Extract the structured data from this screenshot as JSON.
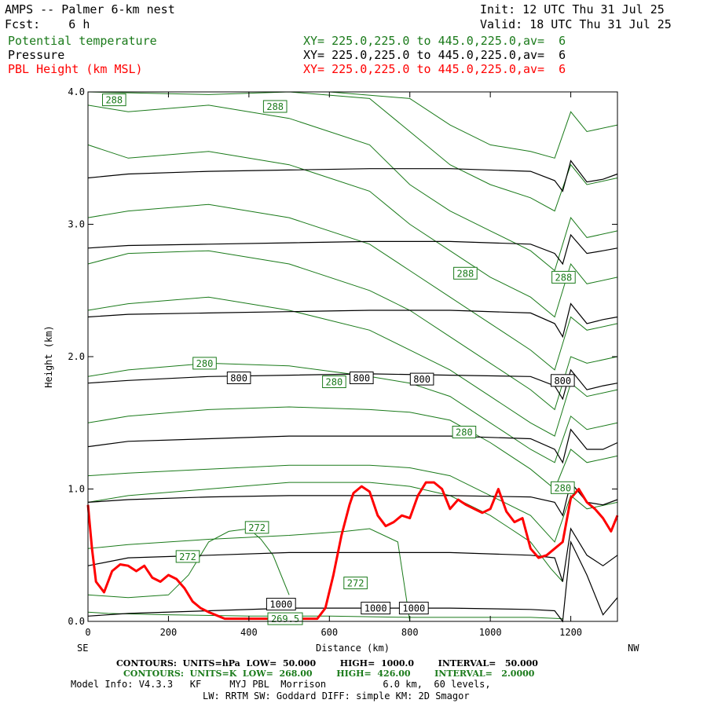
{
  "header": {
    "title": "AMPS -- Palmer 6-km nest",
    "forecast": "Fcst:    6 h",
    "init": "Init: 12 UTC Thu 31 Jul 25",
    "valid": "Valid: 18 UTC Thu 31 Jul 25"
  },
  "fields": [
    {
      "name": "Potential temperature",
      "xy": "XY= 225.0,225.0 to 445.0,225.0,av=  6"
    },
    {
      "name": "Pressure",
      "xy": "XY= 225.0,225.0 to 445.0,225.0,av=  6"
    },
    {
      "name": "PBL Height (km MSL)",
      "xy": "XY= 225.0,225.0 to 445.0,225.0,av=  6"
    }
  ],
  "colors": {
    "theta": "#1a7a1a",
    "pressure": "#000000",
    "pbl": "#ff0000"
  },
  "footer": {
    "line1": "CONTOURS:  UNITS=hPa  LOW=  50.000        HIGH=  1000.0        INTERVAL=   50.000",
    "line2": "CONTOURS:  UNITS=K  LOW=  268.00        HIGH=  426.00        INTERVAL=   2.0000",
    "line3": "Model Info: V4.3.3   KF     MYJ PBL  Morrison          6.0 km,  60 levels,",
    "line4": "LW: RRTM SW: Goddard DIFF: simple KM: 2D Smagor"
  },
  "chart_data": {
    "type": "line",
    "xlabel": "Distance (km)",
    "ylabel": "Height (km)",
    "x_end_left": "SE",
    "x_end_right": "NW",
    "xlim": [
      0,
      1316
    ],
    "ylim": [
      0,
      4
    ],
    "x_ticks": [
      0,
      200,
      400,
      600,
      800,
      1000,
      1200
    ],
    "y_ticks": [
      0.0,
      1.0,
      2.0,
      3.0,
      4.0
    ],
    "x_tick_labels": [
      "0",
      "200",
      "400",
      "600",
      "800",
      "1000",
      "1200"
    ],
    "y_tick_labels": [
      "0.0",
      "1.0",
      "2.0",
      "3.0",
      "4.0"
    ],
    "series": [
      {
        "name": "PBL Height (km MSL)",
        "color": "#ff0000",
        "x": [
          0,
          10,
          20,
          40,
          60,
          80,
          100,
          120,
          140,
          160,
          180,
          200,
          220,
          240,
          260,
          280,
          300,
          340,
          400,
          460,
          500,
          540,
          570,
          590,
          610,
          630,
          650,
          660,
          680,
          700,
          720,
          740,
          760,
          780,
          800,
          820,
          840,
          860,
          880,
          900,
          920,
          940,
          960,
          980,
          1000,
          1020,
          1040,
          1060,
          1080,
          1100,
          1120,
          1140,
          1160,
          1180,
          1200,
          1220,
          1240,
          1260,
          1280,
          1300,
          1316
        ],
        "y": [
          0.88,
          0.55,
          0.3,
          0.22,
          0.38,
          0.43,
          0.42,
          0.38,
          0.42,
          0.33,
          0.3,
          0.35,
          0.32,
          0.25,
          0.15,
          0.1,
          0.07,
          0.02,
          0.02,
          0.02,
          0.02,
          0.02,
          0.02,
          0.1,
          0.35,
          0.65,
          0.88,
          0.97,
          1.02,
          0.98,
          0.8,
          0.72,
          0.75,
          0.8,
          0.78,
          0.95,
          1.05,
          1.05,
          1.0,
          0.85,
          0.92,
          0.88,
          0.85,
          0.82,
          0.85,
          1.0,
          0.83,
          0.75,
          0.78,
          0.55,
          0.48,
          0.5,
          0.55,
          0.6,
          0.93,
          1.0,
          0.9,
          0.85,
          0.78,
          0.68,
          0.8
        ]
      }
    ],
    "pressure_contours_hPa": [
      {
        "level": 1000,
        "label": "1000",
        "x": [
          0,
          100,
          300,
          500,
          700,
          900,
          1100,
          1160,
          1180,
          1200,
          1240,
          1280,
          1316
        ],
        "y": [
          0.04,
          0.06,
          0.08,
          0.1,
          0.1,
          0.1,
          0.09,
          0.08,
          0.0,
          0.6,
          0.35,
          0.05,
          0.18
        ]
      },
      {
        "level": 950,
        "x": [
          0,
          100,
          300,
          500,
          700,
          900,
          1100,
          1160,
          1180,
          1200,
          1240,
          1280,
          1316
        ],
        "y": [
          0.42,
          0.48,
          0.5,
          0.52,
          0.52,
          0.52,
          0.5,
          0.48,
          0.3,
          0.7,
          0.5,
          0.42,
          0.5
        ]
      },
      {
        "level": 900,
        "x": [
          0,
          100,
          300,
          500,
          700,
          900,
          1100,
          1160,
          1180,
          1200,
          1240,
          1280,
          1316
        ],
        "y": [
          0.9,
          0.92,
          0.94,
          0.95,
          0.95,
          0.95,
          0.94,
          0.9,
          0.8,
          1.05,
          0.9,
          0.88,
          0.92
        ]
      },
      {
        "level": 850,
        "x": [
          0,
          100,
          300,
          500,
          700,
          900,
          1100,
          1160,
          1180,
          1200,
          1240,
          1280,
          1316
        ],
        "y": [
          1.32,
          1.36,
          1.38,
          1.4,
          1.4,
          1.4,
          1.38,
          1.3,
          1.2,
          1.45,
          1.3,
          1.3,
          1.35
        ]
      },
      {
        "level": 800,
        "label": "800",
        "x": [
          0,
          100,
          300,
          500,
          700,
          900,
          1100,
          1160,
          1180,
          1200,
          1240,
          1280,
          1316
        ],
        "y": [
          1.8,
          1.82,
          1.85,
          1.86,
          1.87,
          1.86,
          1.85,
          1.78,
          1.68,
          1.9,
          1.75,
          1.78,
          1.8
        ]
      },
      {
        "level": 750,
        "x": [
          0,
          100,
          300,
          500,
          700,
          900,
          1100,
          1160,
          1180,
          1200,
          1240,
          1280,
          1316
        ],
        "y": [
          2.3,
          2.32,
          2.33,
          2.34,
          2.35,
          2.35,
          2.33,
          2.25,
          2.15,
          2.4,
          2.25,
          2.28,
          2.3
        ]
      },
      {
        "level": 700,
        "x": [
          0,
          100,
          300,
          500,
          700,
          900,
          1100,
          1160,
          1180,
          1200,
          1240,
          1280,
          1316
        ],
        "y": [
          2.82,
          2.84,
          2.85,
          2.86,
          2.87,
          2.87,
          2.85,
          2.78,
          2.7,
          2.92,
          2.78,
          2.8,
          2.82
        ]
      },
      {
        "level": 650,
        "x": [
          0,
          100,
          300,
          500,
          700,
          900,
          1100,
          1160,
          1180,
          1200,
          1240,
          1280,
          1316
        ],
        "y": [
          3.35,
          3.38,
          3.4,
          3.41,
          3.42,
          3.42,
          3.4,
          3.33,
          3.25,
          3.48,
          3.32,
          3.34,
          3.38
        ]
      }
    ],
    "theta_contours_K": [
      {
        "x": [
          0,
          50,
          200,
          400,
          600,
          800,
          1000,
          1100,
          1180
        ],
        "y": [
          0.07,
          0.06,
          0.05,
          0.04,
          0.04,
          0.03,
          0.03,
          0.03,
          0.02
        ]
      },
      {
        "x": [
          0,
          100,
          200,
          250,
          300,
          350,
          400,
          430,
          460,
          480,
          500
        ],
        "y": [
          0.2,
          0.18,
          0.2,
          0.35,
          0.6,
          0.68,
          0.7,
          0.62,
          0.5,
          0.35,
          0.2
        ]
      },
      {
        "x": [
          0,
          100,
          300,
          500,
          640,
          700,
          770,
          800
        ],
        "y": [
          0.55,
          0.58,
          0.62,
          0.65,
          0.68,
          0.7,
          0.6,
          0.0
        ]
      },
      {
        "x": [
          0,
          100,
          300,
          500,
          700,
          800,
          900,
          1000,
          1050,
          1100,
          1150,
          1180
        ],
        "y": [
          0.9,
          0.95,
          1.0,
          1.05,
          1.05,
          1.02,
          0.95,
          0.8,
          0.7,
          0.6,
          0.4,
          0.3
        ]
      },
      {
        "x": [
          0,
          100,
          300,
          500,
          700,
          800,
          900,
          1000,
          1100,
          1160,
          1200,
          1240,
          1316
        ],
        "y": [
          1.1,
          1.12,
          1.15,
          1.18,
          1.18,
          1.16,
          1.1,
          0.95,
          0.8,
          0.6,
          0.95,
          0.85,
          0.9
        ]
      },
      {
        "x": [
          0,
          100,
          300,
          500,
          700,
          800,
          900,
          1000,
          1100,
          1160,
          1200,
          1240,
          1316
        ],
        "y": [
          1.5,
          1.55,
          1.6,
          1.62,
          1.6,
          1.58,
          1.52,
          1.35,
          1.15,
          1.0,
          1.3,
          1.2,
          1.25
        ]
      },
      {
        "x": [
          0,
          100,
          300,
          500,
          700,
          800,
          900,
          1000,
          1100,
          1160,
          1200,
          1240,
          1316
        ],
        "y": [
          1.85,
          1.9,
          1.95,
          1.93,
          1.85,
          1.8,
          1.7,
          1.5,
          1.3,
          1.2,
          1.55,
          1.45,
          1.5
        ]
      },
      {
        "x": [
          0,
          100,
          300,
          500,
          700,
          800,
          900,
          1000,
          1100,
          1160,
          1200,
          1240,
          1316
        ],
        "y": [
          2.35,
          2.4,
          2.45,
          2.35,
          2.2,
          2.05,
          1.9,
          1.7,
          1.5,
          1.4,
          1.8,
          1.7,
          1.75
        ]
      },
      {
        "x": [
          0,
          100,
          300,
          500,
          700,
          800,
          900,
          1000,
          1100,
          1160,
          1200,
          1240,
          1316
        ],
        "y": [
          2.7,
          2.78,
          2.8,
          2.7,
          2.5,
          2.35,
          2.15,
          1.95,
          1.75,
          1.6,
          2.0,
          1.95,
          2.0
        ]
      },
      {
        "x": [
          0,
          100,
          300,
          500,
          700,
          800,
          900,
          1000,
          1100,
          1160,
          1200,
          1240,
          1316
        ],
        "y": [
          3.05,
          3.1,
          3.15,
          3.05,
          2.85,
          2.65,
          2.45,
          2.25,
          2.05,
          1.9,
          2.3,
          2.2,
          2.25
        ]
      },
      {
        "x": [
          0,
          100,
          300,
          500,
          700,
          800,
          900,
          1000,
          1100,
          1160,
          1200,
          1240,
          1316
        ],
        "y": [
          3.6,
          3.5,
          3.55,
          3.45,
          3.25,
          3.0,
          2.8,
          2.6,
          2.45,
          2.3,
          2.7,
          2.55,
          2.6
        ]
      },
      {
        "x": [
          0,
          100,
          300,
          500,
          700,
          800,
          900,
          1000,
          1100,
          1160,
          1200,
          1240,
          1316
        ],
        "y": [
          3.9,
          3.85,
          3.9,
          3.8,
          3.6,
          3.3,
          3.1,
          2.95,
          2.8,
          2.65,
          3.05,
          2.9,
          2.95
        ]
      },
      {
        "x": [
          0,
          300,
          500,
          700,
          800,
          900,
          1000,
          1100,
          1160,
          1200,
          1240,
          1316
        ],
        "y": [
          4.0,
          3.98,
          4.0,
          3.95,
          3.7,
          3.45,
          3.3,
          3.2,
          3.1,
          3.45,
          3.3,
          3.35
        ]
      },
      {
        "x": [
          600,
          800,
          900,
          1000,
          1100,
          1160,
          1200,
          1240,
          1316
        ],
        "y": [
          4.0,
          3.95,
          3.75,
          3.6,
          3.55,
          3.5,
          3.85,
          3.7,
          3.75
        ]
      }
    ],
    "contour_labels": [
      {
        "text": "288",
        "units": "K",
        "x": 65,
        "y": 3.94
      },
      {
        "text": "288",
        "units": "K",
        "x": 465,
        "y": 3.89
      },
      {
        "text": "288",
        "units": "K",
        "x": 938,
        "y": 2.63
      },
      {
        "text": "288",
        "units": "K",
        "x": 1182,
        "y": 2.6
      },
      {
        "text": "280",
        "units": "K",
        "x": 290,
        "y": 1.95
      },
      {
        "text": "280",
        "units": "K",
        "x": 612,
        "y": 1.81
      },
      {
        "text": "280",
        "units": "K",
        "x": 935,
        "y": 1.43
      },
      {
        "text": "280",
        "units": "K",
        "x": 1180,
        "y": 1.01
      },
      {
        "text": "272",
        "units": "K",
        "x": 420,
        "y": 0.71
      },
      {
        "text": "272",
        "units": "K",
        "x": 248,
        "y": 0.49
      },
      {
        "text": "272",
        "units": "K",
        "x": 665,
        "y": 0.29
      },
      {
        "text": "800",
        "units": "hPa",
        "x": 375,
        "y": 1.84
      },
      {
        "text": "800",
        "units": "hPa",
        "x": 680,
        "y": 1.84
      },
      {
        "text": "800",
        "units": "hPa",
        "x": 830,
        "y": 1.83
      },
      {
        "text": "800",
        "units": "hPa",
        "x": 1180,
        "y": 1.82
      },
      {
        "text": "1000",
        "units": "hPa",
        "x": 480,
        "y": 0.13
      },
      {
        "text": "1000",
        "units": "hPa",
        "x": 715,
        "y": 0.1
      },
      {
        "text": "1000",
        "units": "hPa",
        "x": 810,
        "y": 0.1
      },
      {
        "text": "269.5",
        "units": "K",
        "x": 490,
        "y": 0.02
      }
    ]
  }
}
